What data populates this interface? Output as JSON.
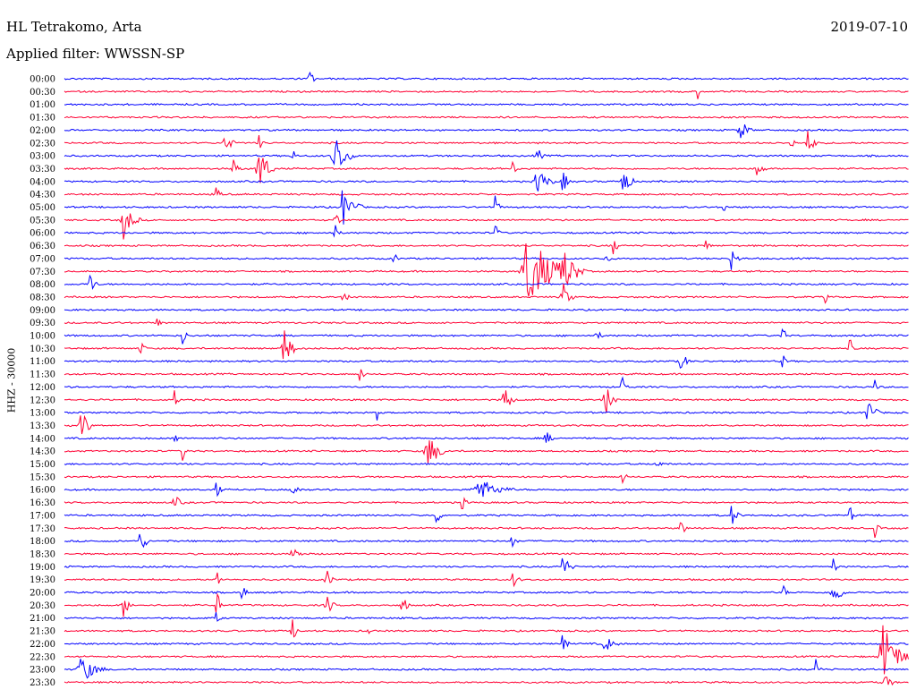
{
  "header": {
    "station": "HL Tetrakomo, Arta",
    "date": "2019-07-10",
    "filter": "Applied filter: WWSSN-SP"
  },
  "chart_data": {
    "type": "line",
    "ylabel": "HHZ - 30000",
    "trace_colors": [
      "#0000ff",
      "#ff0033"
    ],
    "rows": [
      "00:00",
      "00:30",
      "01:00",
      "01:30",
      "02:00",
      "02:30",
      "03:00",
      "03:30",
      "04:00",
      "04:30",
      "05:00",
      "05:30",
      "06:00",
      "06:30",
      "07:00",
      "07:30",
      "08:00",
      "08:30",
      "09:00",
      "09:30",
      "10:00",
      "10:30",
      "11:00",
      "11:30",
      "12:00",
      "12:30",
      "13:00",
      "13:30",
      "14:00",
      "14:30",
      "15:00",
      "15:30",
      "16:00",
      "16:30",
      "17:00",
      "17:30",
      "18:00",
      "18:30",
      "19:00",
      "19:30",
      "20:00",
      "20:30",
      "21:00",
      "21:30",
      "22:00",
      "22:30",
      "23:00",
      "23:30"
    ],
    "events": [
      [
        0,
        0.29,
        6,
        1.8
      ],
      [
        1,
        0.75,
        3,
        1.2
      ],
      [
        4,
        0.8,
        10,
        2.2
      ],
      [
        5,
        0.19,
        9,
        2.2
      ],
      [
        5,
        0.23,
        5,
        1.4
      ],
      [
        5,
        0.86,
        5,
        1.8
      ],
      [
        5,
        0.88,
        10,
        2.0
      ],
      [
        6,
        0.32,
        16,
        4.2
      ],
      [
        6,
        0.27,
        5,
        1.5
      ],
      [
        6,
        0.56,
        6,
        1.6
      ],
      [
        7,
        0.23,
        14,
        4.2
      ],
      [
        7,
        0.2,
        8,
        1.5
      ],
      [
        7,
        0.53,
        6,
        1.5
      ],
      [
        7,
        0.82,
        8,
        1.8
      ],
      [
        8,
        0.56,
        14,
        2.8
      ],
      [
        8,
        0.66,
        10,
        3.6
      ],
      [
        8,
        0.59,
        8,
        2.0
      ],
      [
        9,
        0.18,
        5,
        1.5
      ],
      [
        10,
        0.33,
        16,
        3.2
      ],
      [
        10,
        0.51,
        6,
        1.8
      ],
      [
        10,
        0.78,
        4,
        1.3
      ],
      [
        11,
        0.07,
        14,
        3.0
      ],
      [
        11,
        0.32,
        6,
        2.0
      ],
      [
        12,
        0.32,
        5,
        1.6
      ],
      [
        12,
        0.51,
        5,
        1.6
      ],
      [
        13,
        0.65,
        5,
        2.0
      ],
      [
        13,
        0.76,
        5,
        1.4
      ],
      [
        14,
        0.64,
        5,
        1.6
      ],
      [
        14,
        0.79,
        8,
        1.8
      ],
      [
        14,
        0.39,
        4,
        1.4
      ],
      [
        15,
        0.55,
        40,
        6.0
      ],
      [
        15,
        0.59,
        20,
        3.0
      ],
      [
        16,
        0.03,
        8,
        2.0
      ],
      [
        17,
        0.33,
        5,
        2.0
      ],
      [
        17,
        0.59,
        10,
        2.5
      ],
      [
        17,
        0.9,
        4,
        1.3
      ],
      [
        19,
        0.11,
        4,
        1.3
      ],
      [
        20,
        0.14,
        5,
        1.6
      ],
      [
        20,
        0.63,
        5,
        1.5
      ],
      [
        20,
        0.85,
        6,
        1.6
      ],
      [
        21,
        0.09,
        5,
        1.8
      ],
      [
        21,
        0.26,
        12,
        3.6
      ],
      [
        21,
        0.93,
        5,
        1.8
      ],
      [
        22,
        0.73,
        8,
        2.2
      ],
      [
        22,
        0.85,
        5,
        1.4
      ],
      [
        23,
        0.35,
        5,
        1.8
      ],
      [
        24,
        0.66,
        6,
        2.2
      ],
      [
        24,
        0.96,
        4,
        1.3
      ],
      [
        25,
        0.13,
        5,
        1.6
      ],
      [
        25,
        0.52,
        10,
        3.0
      ],
      [
        25,
        0.64,
        10,
        3.2
      ],
      [
        26,
        0.37,
        4,
        1.3
      ],
      [
        26,
        0.95,
        10,
        3.6
      ],
      [
        27,
        0.02,
        10,
        3.2
      ],
      [
        28,
        0.13,
        5,
        1.6
      ],
      [
        28,
        0.57,
        6,
        1.8
      ],
      [
        29,
        0.14,
        5,
        1.6
      ],
      [
        29,
        0.43,
        18,
        3.0
      ],
      [
        30,
        0.7,
        6,
        1.5
      ],
      [
        31,
        0.66,
        5,
        1.5
      ],
      [
        32,
        0.18,
        5,
        2.0
      ],
      [
        32,
        0.49,
        30,
        2.0
      ],
      [
        32,
        0.27,
        8,
        1.3
      ],
      [
        33,
        0.13,
        8,
        1.5
      ],
      [
        33,
        0.47,
        6,
        1.5
      ],
      [
        34,
        0.44,
        6,
        1.8
      ],
      [
        34,
        0.79,
        8,
        2.0
      ],
      [
        34,
        0.93,
        6,
        1.5
      ],
      [
        35,
        0.73,
        6,
        1.8
      ],
      [
        35,
        0.96,
        5,
        1.5
      ],
      [
        36,
        0.09,
        8,
        2.4
      ],
      [
        36,
        0.53,
        5,
        1.6
      ],
      [
        37,
        0.27,
        8,
        2.0
      ],
      [
        38,
        0.59,
        10,
        2.2
      ],
      [
        38,
        0.91,
        5,
        1.6
      ],
      [
        39,
        0.18,
        5,
        2.2
      ],
      [
        39,
        0.31,
        8,
        1.8
      ],
      [
        39,
        0.53,
        8,
        1.5
      ],
      [
        40,
        0.85,
        5,
        2.0
      ],
      [
        40,
        0.91,
        12,
        2.8
      ],
      [
        40,
        0.21,
        6,
        1.5
      ],
      [
        41,
        0.07,
        8,
        2.0
      ],
      [
        41,
        0.18,
        6,
        2.8
      ],
      [
        41,
        0.31,
        8,
        2.4
      ],
      [
        41,
        0.4,
        6,
        2.6
      ],
      [
        42,
        0.18,
        4,
        1.5
      ],
      [
        43,
        0.27,
        8,
        1.8
      ],
      [
        43,
        0.36,
        5,
        1.3
      ],
      [
        44,
        0.59,
        6,
        1.6
      ],
      [
        44,
        0.64,
        12,
        1.5
      ],
      [
        45,
        0.97,
        25,
        5.0
      ],
      [
        46,
        0.02,
        20,
        2.6
      ],
      [
        46,
        0.89,
        6,
        1.8
      ],
      [
        47,
        0.97,
        10,
        1.8
      ]
    ]
  }
}
